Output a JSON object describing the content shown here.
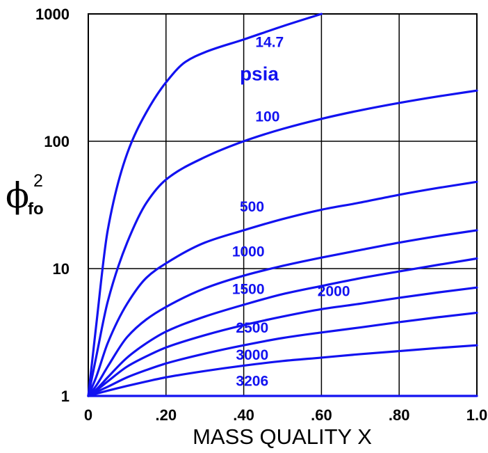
{
  "chart_data": {
    "type": "line",
    "title": "",
    "xlabel": "MASS QUALITY X",
    "ylabel": {
      "symbol": "ϕ",
      "subscript": "fo",
      "superscript": "2"
    },
    "xlim": [
      0,
      1.0
    ],
    "ylim": [
      1,
      1000
    ],
    "yscale": "log",
    "grid": true,
    "legend": "none",
    "x_ticks": [
      {
        "value": 0,
        "label": "0"
      },
      {
        "value": 0.2,
        "label": ".20"
      },
      {
        "value": 0.4,
        "label": ".40"
      },
      {
        "value": 0.6,
        "label": ".60"
      },
      {
        "value": 0.8,
        "label": ".80"
      },
      {
        "value": 1.0,
        "label": "1.0"
      }
    ],
    "y_ticks": [
      {
        "value": 1,
        "label": "1"
      },
      {
        "value": 10,
        "label": "10"
      },
      {
        "value": 100,
        "label": "100"
      },
      {
        "value": 1000,
        "label": "1000"
      }
    ],
    "unit_annotation": "psia",
    "line_color": "#1212f0",
    "series": [
      {
        "name": "14.7",
        "x": [
          0,
          0.02,
          0.05,
          0.1,
          0.15,
          0.2,
          0.25,
          0.3,
          0.4,
          0.5,
          0.6
        ],
        "y": [
          1,
          3.5,
          20,
          80,
          170,
          290,
          420,
          500,
          630,
          800,
          1000
        ]
      },
      {
        "name": "100",
        "x": [
          0,
          0.02,
          0.05,
          0.1,
          0.15,
          0.2,
          0.3,
          0.4,
          0.5,
          0.6,
          0.7,
          0.8,
          0.9,
          1.0
        ],
        "y": [
          1,
          2,
          5.5,
          16,
          33,
          50,
          75,
          100,
          125,
          150,
          175,
          200,
          225,
          250
        ]
      },
      {
        "name": "500",
        "x": [
          0,
          0.02,
          0.05,
          0.1,
          0.15,
          0.2,
          0.3,
          0.4,
          0.5,
          0.6,
          0.7,
          0.8,
          0.9,
          1.0
        ],
        "y": [
          1,
          1.4,
          2.6,
          5.3,
          8.5,
          11,
          16,
          20,
          24.5,
          29,
          33,
          38,
          43,
          48
        ]
      },
      {
        "name": "1000",
        "x": [
          0,
          0.02,
          0.05,
          0.1,
          0.15,
          0.2,
          0.3,
          0.4,
          0.5,
          0.6,
          0.7,
          0.8,
          0.9,
          1.0
        ],
        "y": [
          1,
          1.2,
          1.7,
          2.9,
          4.0,
          5.0,
          7.0,
          8.8,
          10.5,
          12.2,
          14,
          16,
          18,
          20
        ]
      },
      {
        "name": "1500",
        "x": [
          0,
          0.02,
          0.05,
          0.1,
          0.15,
          0.2,
          0.3,
          0.4,
          0.5,
          0.6,
          0.7,
          0.8,
          0.9,
          1.0
        ],
        "y": [
          1,
          1.12,
          1.4,
          2.0,
          2.6,
          3.2,
          4.2,
          5.2,
          6.3,
          7.3,
          8.4,
          9.5,
          10.7,
          12
        ]
      },
      {
        "name": "2000",
        "x": [
          0,
          0.02,
          0.05,
          0.1,
          0.15,
          0.2,
          0.3,
          0.4,
          0.5,
          0.6,
          0.7,
          0.8,
          0.9,
          1.0
        ],
        "y": [
          1,
          1.1,
          1.3,
          1.7,
          2.05,
          2.4,
          3.0,
          3.6,
          4.2,
          4.8,
          5.3,
          5.9,
          6.5,
          7.1
        ]
      },
      {
        "name": "2500",
        "x": [
          0,
          0.02,
          0.05,
          0.1,
          0.15,
          0.2,
          0.3,
          0.4,
          0.5,
          0.6,
          0.7,
          0.8,
          0.9,
          1.0
        ],
        "y": [
          1,
          1.07,
          1.18,
          1.4,
          1.6,
          1.8,
          2.15,
          2.5,
          2.85,
          3.15,
          3.45,
          3.8,
          4.15,
          4.5
        ]
      },
      {
        "name": "3000",
        "x": [
          0,
          0.02,
          0.05,
          0.1,
          0.15,
          0.2,
          0.3,
          0.4,
          0.5,
          0.6,
          0.7,
          0.8,
          0.9,
          1.0
        ],
        "y": [
          1,
          1.04,
          1.1,
          1.2,
          1.3,
          1.4,
          1.57,
          1.73,
          1.88,
          2.0,
          2.13,
          2.25,
          2.38,
          2.5
        ]
      },
      {
        "name": "3206",
        "x": [
          0,
          1.0
        ],
        "y": [
          1,
          1
        ]
      }
    ],
    "curve_labels": [
      {
        "series": "14.7",
        "x": 0.43,
        "y": 550
      },
      {
        "series": "100",
        "x": 0.43,
        "y": 143
      },
      {
        "series": "500",
        "x": 0.39,
        "y": 28
      },
      {
        "series": "1000",
        "x": 0.37,
        "y": 12.5
      },
      {
        "series": "1500",
        "x": 0.37,
        "y": 6.3
      },
      {
        "series": "2000",
        "x": 0.59,
        "y": 6.1
      },
      {
        "series": "2500",
        "x": 0.38,
        "y": 3.15
      },
      {
        "series": "3000",
        "x": 0.38,
        "y": 1.92
      },
      {
        "series": "3206",
        "x": 0.38,
        "y": 1.2
      }
    ],
    "psia_label_position": {
      "x": 0.44,
      "y": 300
    }
  }
}
